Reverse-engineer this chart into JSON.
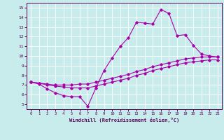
{
  "xlabel": "Windchill (Refroidissement éolien,°C)",
  "bg_color": "#c8ecec",
  "line_color": "#aa00aa",
  "xlim": [
    -0.5,
    23.5
  ],
  "ylim": [
    4.5,
    15.5
  ],
  "xticks": [
    0,
    1,
    2,
    3,
    4,
    5,
    6,
    7,
    8,
    9,
    10,
    11,
    12,
    13,
    14,
    15,
    16,
    17,
    18,
    19,
    20,
    21,
    22,
    23
  ],
  "yticks": [
    5,
    6,
    7,
    8,
    9,
    10,
    11,
    12,
    13,
    14,
    15
  ],
  "line1_x": [
    0,
    1,
    2,
    3,
    4,
    5,
    6,
    7,
    8,
    9,
    10,
    11,
    12,
    13,
    14,
    15,
    16,
    17,
    18,
    19,
    20,
    21,
    22,
    23
  ],
  "line1_y": [
    7.3,
    7.1,
    6.6,
    6.2,
    5.9,
    5.8,
    5.8,
    4.8,
    6.7,
    8.5,
    9.8,
    11.0,
    11.9,
    13.5,
    13.4,
    13.3,
    14.8,
    14.4,
    12.1,
    12.2,
    11.1,
    10.2,
    10.0,
    9.9
  ],
  "line2_x": [
    0,
    1,
    2,
    3,
    4,
    5,
    6,
    7,
    8,
    9,
    10,
    11,
    12,
    13,
    14,
    15,
    16,
    17,
    18,
    19,
    20,
    21,
    22,
    23
  ],
  "line2_y": [
    7.3,
    7.2,
    7.1,
    7.0,
    7.0,
    7.0,
    7.1,
    7.1,
    7.3,
    7.5,
    7.7,
    7.9,
    8.1,
    8.4,
    8.6,
    8.9,
    9.1,
    9.3,
    9.5,
    9.7,
    9.8,
    9.9,
    9.9,
    9.9
  ],
  "line3_x": [
    0,
    1,
    2,
    3,
    4,
    5,
    6,
    7,
    8,
    9,
    10,
    11,
    12,
    13,
    14,
    15,
    16,
    17,
    18,
    19,
    20,
    21,
    22,
    23
  ],
  "line3_y": [
    7.3,
    7.2,
    7.0,
    6.9,
    6.8,
    6.7,
    6.7,
    6.7,
    6.9,
    7.1,
    7.3,
    7.5,
    7.7,
    8.0,
    8.2,
    8.5,
    8.7,
    8.9,
    9.1,
    9.3,
    9.4,
    9.5,
    9.6,
    9.6
  ]
}
